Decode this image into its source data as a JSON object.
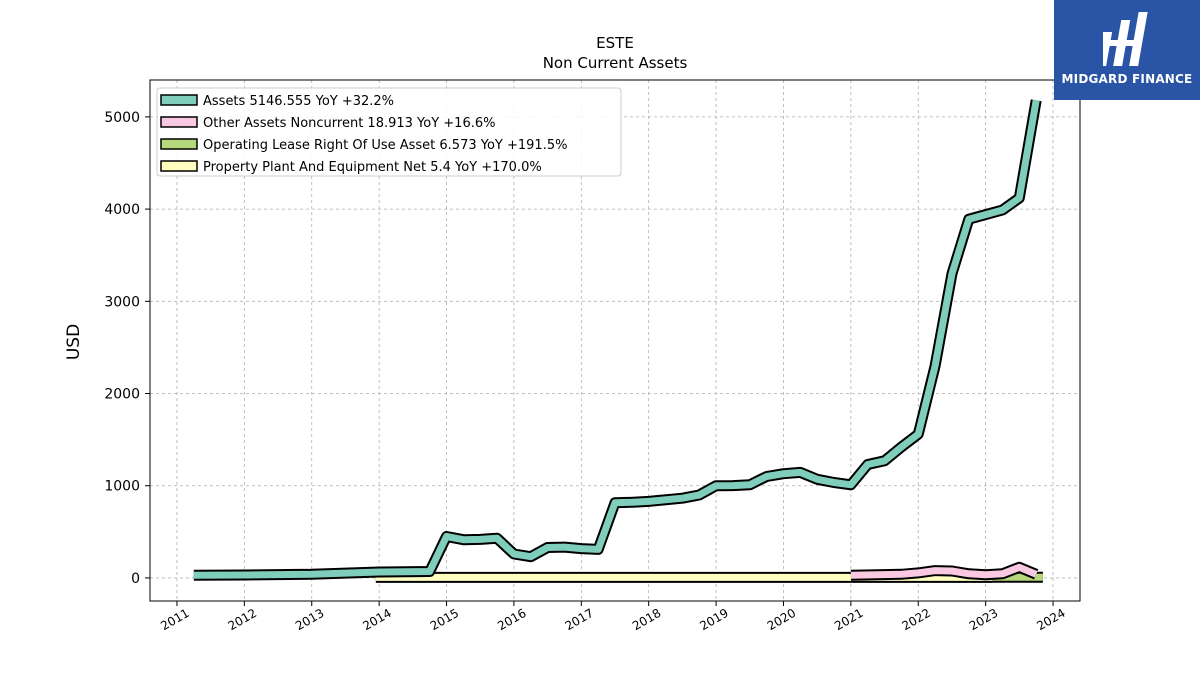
{
  "brand": {
    "name": "MIDGARD FINANCE",
    "bg_color": "#2a55a6"
  },
  "chart_data": {
    "type": "area",
    "title": "ESTE",
    "subtitle": "Non Current  Assets",
    "ylabel": "USD",
    "xlabel": "",
    "ylim": [
      -250,
      5400
    ],
    "xlim": [
      2010.6,
      2024.4
    ],
    "grid": true,
    "legend_position": "top-left",
    "x_ticks": [
      "2011",
      "2012",
      "2013",
      "2014",
      "2015",
      "2016",
      "2017",
      "2018",
      "2019",
      "2020",
      "2021",
      "2022",
      "2023",
      "2024"
    ],
    "y_ticks": [
      0,
      1000,
      2000,
      3000,
      4000,
      5000
    ],
    "series": [
      {
        "name": "Assets",
        "legend_label": "Assets  5146.555 YoY +32.2%",
        "color": "#7fcdbb",
        "points": [
          [
            2011.25,
            30
          ],
          [
            2012.0,
            32
          ],
          [
            2013.0,
            40
          ],
          [
            2014.0,
            65
          ],
          [
            2014.75,
            70
          ],
          [
            2015.0,
            450
          ],
          [
            2015.25,
            415
          ],
          [
            2015.5,
            418
          ],
          [
            2015.75,
            430
          ],
          [
            2016.0,
            260
          ],
          [
            2016.25,
            230
          ],
          [
            2016.5,
            330
          ],
          [
            2016.75,
            335
          ],
          [
            2017.0,
            318
          ],
          [
            2017.25,
            310
          ],
          [
            2017.5,
            815
          ],
          [
            2017.75,
            820
          ],
          [
            2018.0,
            830
          ],
          [
            2018.5,
            865
          ],
          [
            2018.75,
            900
          ],
          [
            2019.0,
            1000
          ],
          [
            2019.25,
            1002
          ],
          [
            2019.5,
            1010
          ],
          [
            2019.75,
            1100
          ],
          [
            2020.0,
            1130
          ],
          [
            2020.25,
            1145
          ],
          [
            2020.5,
            1070
          ],
          [
            2020.75,
            1035
          ],
          [
            2021.0,
            1010
          ],
          [
            2021.25,
            1230
          ],
          [
            2021.5,
            1270
          ],
          [
            2021.75,
            1420
          ],
          [
            2022.0,
            1560
          ],
          [
            2022.25,
            2300
          ],
          [
            2022.5,
            3300
          ],
          [
            2022.75,
            3890
          ],
          [
            2023.0,
            3940
          ],
          [
            2023.25,
            3990
          ],
          [
            2023.5,
            4120
          ],
          [
            2023.75,
            5180
          ]
        ]
      },
      {
        "name": "Other Assets Noncurrent",
        "legend_label": "Other Assets Noncurrent  18.913 YoY +16.6%",
        "color": "#f8c9e0",
        "points": [
          [
            2021.0,
            30
          ],
          [
            2021.75,
            40
          ],
          [
            2022.0,
            55
          ],
          [
            2022.25,
            80
          ],
          [
            2022.5,
            75
          ],
          [
            2022.75,
            45
          ],
          [
            2023.0,
            35
          ],
          [
            2023.25,
            45
          ],
          [
            2023.5,
            115
          ],
          [
            2023.75,
            40
          ]
        ]
      },
      {
        "name": "Operating Lease Right Of Use Asset",
        "legend_label": "Operating Lease Right Of Use Asset  6.573 YoY +191.5%",
        "color": "#b5d87a",
        "points": [
          [
            2023.1,
            6.6
          ],
          [
            2023.85,
            6.6
          ]
        ]
      },
      {
        "name": "Property Plant And Equipment Net",
        "legend_label": "Property Plant And Equipment Net  5.4 YoY +170.0%",
        "color": "#ffffc0",
        "points": [
          [
            2013.95,
            5.4
          ],
          [
            2023.1,
            5.4
          ]
        ]
      }
    ]
  }
}
